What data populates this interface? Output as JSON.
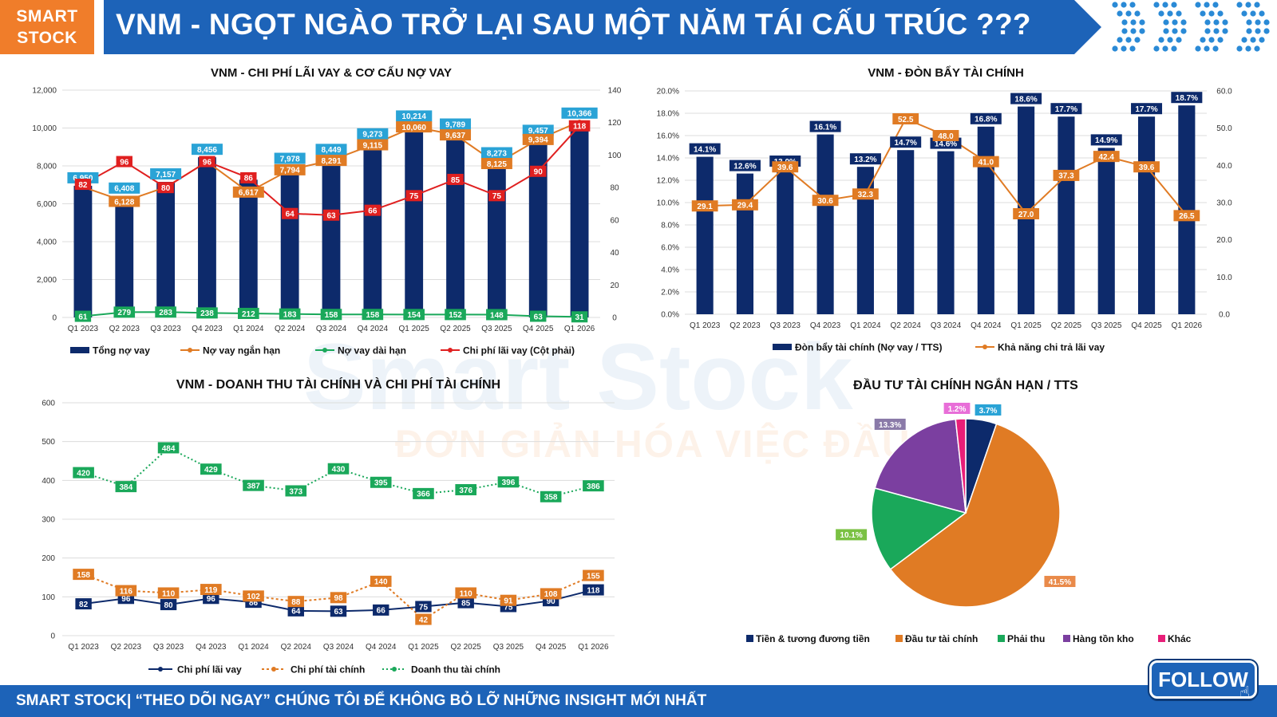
{
  "header": {
    "logo_line1": "SMART",
    "logo_line2": "STOCK",
    "title": "VNM - NGỌT NGÀO TRỞ LẠI SAU MỘT NĂM TÁI CẤU TRÚC ???"
  },
  "watermark": {
    "brand": "Smart Stock",
    "slogan": "ĐƠN GIẢN HÓA VIỆC ĐẦU TƯ"
  },
  "footer": {
    "text": "SMART STOCK| “THEO DÕI NGAY” CHÚNG TÔI ĐỂ KHÔNG BỎ LỠ NHỮNG INSIGHT MỚI NHẤT",
    "follow_label": "FOLLOW"
  },
  "colors": {
    "navy": "#0d2a6b",
    "orange": "#e07b24",
    "green": "#1aa85a",
    "red": "#e02020",
    "cyan": "#2aa3d6",
    "purple": "#7b3fa0",
    "pink": "#e81e78",
    "title_blue": "#1d63b8",
    "logo_orange": "#f07d2a"
  },
  "chart_data": [
    {
      "type": "bar",
      "title": "VNM - CHI PHÍ LÃI VAY & CƠ CẤU NỢ VAY",
      "categories": [
        "Q1 2023",
        "Q2 2023",
        "Q3 2023",
        "Q4 2023",
        "Q1 2024",
        "Q2 2024",
        "Q3 2024",
        "Q4 2024",
        "Q1 2025",
        "Q2 2025",
        "Q3 2025",
        "Q4 2025",
        "Q1 2026"
      ],
      "y_left": {
        "ylim": [
          0,
          12000
        ],
        "ticks": [
          "0",
          "2,000",
          "4,000",
          "6,000",
          "8,000",
          "10,000",
          "12,000"
        ]
      },
      "y_right": {
        "ylim": [
          0,
          140
        ],
        "ticks": [
          "0",
          "20",
          "40",
          "60",
          "80",
          "100",
          "120",
          "140"
        ]
      },
      "series": [
        {
          "name": "Tổng nợ vay",
          "kind": "bar",
          "axis": "left",
          "values": [
            6950,
            6408,
            7157,
            8456,
            7270,
            7978,
            8449,
            9273,
            10214,
            9789,
            8273,
            9457,
            10366
          ],
          "labels": [
            "6,950",
            "6,408",
            "7,157",
            "8,456",
            "",
            "7,978",
            "8,449",
            "9,273",
            "10,214",
            "9,789",
            "8,273",
            "9,457",
            "10,366"
          ]
        },
        {
          "name": "Nợ vay ngắn hạn",
          "kind": "line",
          "axis": "left",
          "values": [
            6889,
            6128,
            6874,
            8218,
            6617,
            7794,
            8291,
            9115,
            10060,
            9637,
            8125,
            9394,
            10335
          ],
          "labels": [
            "",
            "6,128",
            "",
            "",
            "6,617",
            "7,794",
            "8,291",
            "9,115",
            "10,060",
            "9,637",
            "8,125",
            "9,394",
            ""
          ]
        },
        {
          "name": "Nợ vay dài hạn",
          "kind": "line",
          "axis": "left",
          "values": [
            61,
            279,
            283,
            238,
            212,
            183,
            158,
            158,
            154,
            152,
            148,
            63,
            31
          ],
          "labels": [
            "61",
            "279",
            "283",
            "238",
            "212",
            "183",
            "158",
            "158",
            "154",
            "152",
            "148",
            "63",
            "31"
          ]
        },
        {
          "name": "Chi phí lãi vay (Cột phải)",
          "kind": "line",
          "axis": "right",
          "values": [
            82,
            96,
            80,
            96,
            86,
            64,
            63,
            66,
            75,
            85,
            75,
            90,
            118
          ],
          "labels": [
            "82",
            "96",
            "80",
            "96",
            "86",
            "64",
            "63",
            "66",
            "75",
            "85",
            "75",
            "90",
            "118"
          ]
        }
      ]
    },
    {
      "type": "bar",
      "title": "VNM - ĐÒN BẨY TÀI CHÍNH",
      "categories": [
        "Q1 2023",
        "Q2 2023",
        "Q3 2023",
        "Q4 2023",
        "Q1 2024",
        "Q2 2024",
        "Q3 2024",
        "Q4 2024",
        "Q1 2025",
        "Q2 2025",
        "Q3 2025",
        "Q4 2025",
        "Q1 2026"
      ],
      "y_left": {
        "ylim": [
          0,
          20
        ],
        "ticks": [
          "0.0%",
          "2.0%",
          "4.0%",
          "6.0%",
          "8.0%",
          "10.0%",
          "12.0%",
          "14.0%",
          "16.0%",
          "18.0%",
          "20.0%"
        ]
      },
      "y_right": {
        "ylim": [
          0,
          60
        ],
        "ticks": [
          "0.0",
          "10.0",
          "20.0",
          "30.0",
          "40.0",
          "50.0",
          "60.0"
        ]
      },
      "series": [
        {
          "name": "Đòn bẩy tài chính (Nợ vay / TTS)",
          "kind": "bar",
          "axis": "left",
          "values": [
            14.1,
            12.6,
            13.0,
            16.1,
            13.2,
            14.7,
            14.6,
            16.8,
            18.6,
            17.7,
            14.9,
            17.7,
            18.7
          ],
          "labels": [
            "14.1%",
            "12.6%",
            "13.0%",
            "16.1%",
            "13.2%",
            "14.7%",
            "14.6%",
            "16.8%",
            "18.6%",
            "17.7%",
            "14.9%",
            "17.7%",
            "18.7%"
          ]
        },
        {
          "name": "Khả năng chi trả lãi vay",
          "kind": "line",
          "axis": "right",
          "values": [
            29.1,
            29.4,
            39.6,
            30.6,
            32.3,
            52.5,
            48.0,
            41.0,
            27.0,
            37.3,
            42.4,
            39.6,
            26.5
          ],
          "labels": [
            "29.1",
            "29.4",
            "39.6",
            "30.6",
            "32.3",
            "52.5",
            "48.0",
            "41.0",
            "27.0",
            "37.3",
            "42.4",
            "39.6",
            "26.5"
          ]
        }
      ]
    },
    {
      "type": "line",
      "title": "VNM - DOANH THU TÀI CHÍNH VÀ CHI PHÍ TÀI CHÍNH",
      "categories": [
        "Q1 2023",
        "Q2 2023",
        "Q3 2023",
        "Q4 2023",
        "Q1 2024",
        "Q2 2024",
        "Q3 2024",
        "Q4 2024",
        "Q1 2025",
        "Q2 2025",
        "Q3 2025",
        "Q4 2025",
        "Q1 2026"
      ],
      "ylim": [
        0,
        600
      ],
      "ticks": [
        "0",
        "100",
        "200",
        "300",
        "400",
        "500",
        "600"
      ],
      "series": [
        {
          "name": "Chi phí lãi vay",
          "values": [
            82,
            96,
            80,
            96,
            86,
            64,
            63,
            66,
            75,
            85,
            75,
            90,
            118
          ],
          "labels": [
            "82",
            "96",
            "80",
            "96",
            "86",
            "64",
            "63",
            "66",
            "75",
            "85",
            "75",
            "90",
            "118"
          ]
        },
        {
          "name": "Chi phí tài chính",
          "values": [
            158,
            116,
            110,
            119,
            102,
            88,
            98,
            140,
            42,
            110,
            91,
            108,
            155
          ],
          "labels": [
            "158",
            "116",
            "110",
            "119",
            "102",
            "88",
            "98",
            "140",
            "42",
            "110",
            "91",
            "108",
            "155"
          ]
        },
        {
          "name": "Doanh thu tài chính",
          "values": [
            420,
            384,
            484,
            429,
            387,
            373,
            430,
            395,
            366,
            376,
            396,
            358,
            386
          ],
          "labels": [
            "420",
            "384",
            "484",
            "429",
            "387",
            "373",
            "430",
            "395",
            "366",
            "376",
            "396",
            "358",
            "386"
          ]
        }
      ]
    },
    {
      "type": "pie",
      "title": "ĐẦU TƯ TÀI CHÍNH NGẮN HẠN / TTS",
      "slices": [
        {
          "name": "Tiền & tương đương tiền",
          "value": 3.7,
          "label": "3.7%"
        },
        {
          "name": "Đầu tư tài chính",
          "value": 41.5,
          "label": "41.5%"
        },
        {
          "name": "Phải thu",
          "value": 10.1,
          "label": "10.1%"
        },
        {
          "name": "Hàng tồn kho",
          "value": 13.3,
          "label": "13.3%"
        },
        {
          "name": "Khác",
          "value": 1.2,
          "label": "1.2%"
        }
      ]
    }
  ]
}
